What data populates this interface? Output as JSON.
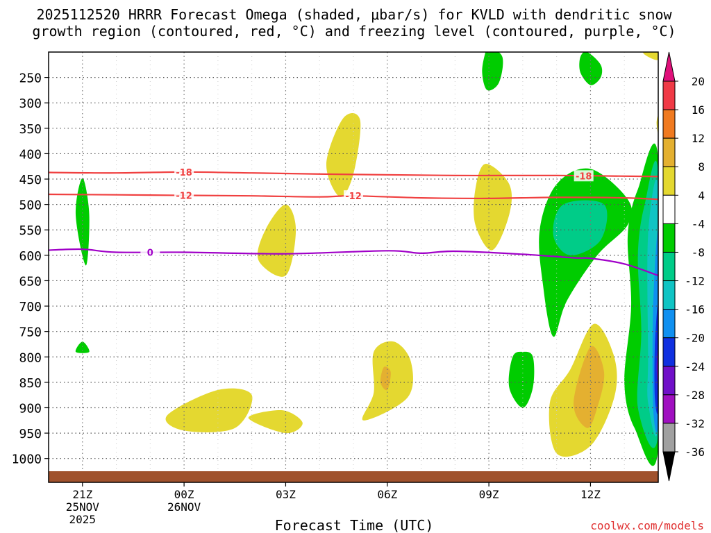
{
  "chart_data": {
    "type": "heatmap",
    "title_line1": "2025112520 HRRR Forecast Omega (shaded, μbar/s) for KVLD with dendritic snow",
    "title_line2": "growth region (contoured, red, °C) and freezing level (contoured, purple, °C)",
    "xlabel": "Forecast Time (UTC)",
    "credit": "coolwx.com/models",
    "x_ticks": [
      {
        "hour": 0,
        "label": "21Z",
        "sub1": "25NOV",
        "sub2": "2025"
      },
      {
        "hour": 3,
        "label": "00Z",
        "sub1": "26NOV",
        "sub2": ""
      },
      {
        "hour": 6,
        "label": "03Z",
        "sub1": "",
        "sub2": ""
      },
      {
        "hour": 9,
        "label": "06Z",
        "sub1": "",
        "sub2": ""
      },
      {
        "hour": 12,
        "label": "09Z",
        "sub1": "",
        "sub2": ""
      },
      {
        "hour": 15,
        "label": "12Z",
        "sub1": "",
        "sub2": ""
      }
    ],
    "x_range_hours": [
      -1,
      17
    ],
    "y_ticks": [
      250,
      300,
      350,
      400,
      450,
      500,
      550,
      600,
      650,
      700,
      750,
      800,
      850,
      900,
      950,
      1000
    ],
    "y_range_hPa": [
      200,
      1025
    ],
    "colorbar": {
      "labels": [
        "20",
        "16",
        "12",
        "8",
        "4",
        "-4",
        "-8",
        "-12",
        "-16",
        "-20",
        "-24",
        "-28",
        "-32",
        "-36"
      ],
      "colors": [
        "#f03a46",
        "#f07a20",
        "#e4b030",
        "#e4d830",
        "#ffffff",
        "#00cc00",
        "#00cc88",
        "#10c4c4",
        "#1090f0",
        "#1030e0",
        "#7010c8",
        "#a010c0",
        "#a0a0a0"
      ],
      "top_arrow_color": "#e0107a",
      "bottom_arrow_color": "#000000"
    },
    "contours": [
      {
        "name": "dgz-minus18",
        "label": "-18",
        "color": "#f04040",
        "label_hours": [
          3,
          14.8
        ],
        "points": [
          [
            -1,
            437
          ],
          [
            1,
            438
          ],
          [
            3,
            436
          ],
          [
            5,
            438
          ],
          [
            8,
            441
          ],
          [
            11,
            443
          ],
          [
            14,
            443
          ],
          [
            17,
            445
          ]
        ]
      },
      {
        "name": "dgz-minus12",
        "label": "-12",
        "color": "#f04040",
        "label_hours": [
          3,
          8
        ],
        "points": [
          [
            -1,
            480
          ],
          [
            1,
            481
          ],
          [
            3,
            482
          ],
          [
            5,
            483
          ],
          [
            7,
            485
          ],
          [
            8,
            483
          ],
          [
            10,
            487
          ],
          [
            12,
            488
          ],
          [
            14,
            486
          ],
          [
            16,
            487
          ],
          [
            17,
            490
          ]
        ]
      },
      {
        "name": "freezing-level-0",
        "label": "0",
        "color": "#a000c8",
        "label_hours": [
          2
        ],
        "points": [
          [
            -1,
            590
          ],
          [
            0,
            588
          ],
          [
            1,
            594
          ],
          [
            3,
            594
          ],
          [
            6,
            597
          ],
          [
            9,
            591
          ],
          [
            10,
            596
          ],
          [
            11,
            592
          ],
          [
            13,
            598
          ],
          [
            14.5,
            605
          ],
          [
            15,
            606
          ],
          [
            16,
            617
          ],
          [
            17,
            640
          ]
        ]
      }
    ],
    "omega_regions": [
      {
        "name": "green-21z-upper",
        "value": -6,
        "color": "#00cc00",
        "points": [
          [
            0,
            448
          ],
          [
            0.2,
            520
          ],
          [
            0.1,
            620
          ],
          [
            -0.2,
            520
          ]
        ]
      },
      {
        "name": "green-21z-lower",
        "value": -6,
        "color": "#00cc00",
        "points": [
          [
            0,
            770
          ],
          [
            0.2,
            790
          ],
          [
            -0.2,
            790
          ]
        ]
      },
      {
        "name": "yellow-00z-low",
        "value": 6,
        "color": "#e4d830",
        "points": [
          [
            2.5,
            915
          ],
          [
            4,
            865
          ],
          [
            5,
            875
          ],
          [
            4.5,
            940
          ],
          [
            3,
            945
          ]
        ]
      },
      {
        "name": "yellow-03z-mid",
        "value": 6,
        "color": "#e4d830",
        "points": [
          [
            6,
            500
          ],
          [
            6.3,
            550
          ],
          [
            6,
            640
          ],
          [
            5.2,
            610
          ],
          [
            5.4,
            550
          ]
        ]
      },
      {
        "name": "yellow-05z-low",
        "value": 6,
        "color": "#e4d830",
        "points": [
          [
            4.9,
            920
          ],
          [
            5.9,
            905
          ],
          [
            6.5,
            930
          ],
          [
            6.0,
            950
          ]
        ]
      },
      {
        "name": "yellow-07z-mid",
        "value": 6,
        "color": "#e4d830",
        "points": [
          [
            7.7,
            330
          ],
          [
            8.2,
            335
          ],
          [
            8.0,
            440
          ],
          [
            7.6,
            485
          ],
          [
            7.2,
            420
          ]
        ]
      },
      {
        "name": "yellow-08z-low",
        "value": 6,
        "color": "#e4d830",
        "points": [
          [
            8.6,
            790
          ],
          [
            9.2,
            770
          ],
          [
            9.7,
            810
          ],
          [
            9.6,
            880
          ],
          [
            8.3,
            925
          ],
          [
            8.6,
            870
          ]
        ]
      },
      {
        "name": "orange-08z-low",
        "value": 10,
        "color": "#e4b030",
        "points": [
          [
            8.9,
            820
          ],
          [
            9.1,
            830
          ],
          [
            9.0,
            865
          ],
          [
            8.8,
            850
          ]
        ]
      },
      {
        "name": "yellow-09z-mid",
        "value": 6,
        "color": "#e4d830",
        "points": [
          [
            11.9,
            420
          ],
          [
            12.6,
            460
          ],
          [
            12.6,
            520
          ],
          [
            12.1,
            590
          ],
          [
            11.6,
            540
          ],
          [
            11.6,
            470
          ]
        ]
      },
      {
        "name": "green-09z-upper",
        "value": -6,
        "color": "#00cc00",
        "points": [
          [
            12.0,
            190
          ],
          [
            12.4,
            210
          ],
          [
            12.3,
            260
          ],
          [
            11.95,
            275
          ],
          [
            11.8,
            240
          ],
          [
            11.9,
            200
          ]
        ]
      },
      {
        "name": "green-10z-low",
        "value": -6,
        "color": "#00cc00",
        "points": [
          [
            13.0,
            790
          ],
          [
            13.3,
            800
          ],
          [
            13.3,
            860
          ],
          [
            13.0,
            900
          ],
          [
            12.6,
            860
          ],
          [
            12.7,
            800
          ]
        ]
      },
      {
        "name": "green-12z-upper",
        "value": -6,
        "color": "#00cc00",
        "points": [
          [
            14.9,
            200
          ],
          [
            15.3,
            225
          ],
          [
            15.3,
            250
          ],
          [
            15.0,
            265
          ],
          [
            14.7,
            240
          ],
          [
            14.7,
            210
          ]
        ]
      },
      {
        "name": "green-11z-mid",
        "value": -6,
        "color": "#00cc00",
        "points": [
          [
            15.0,
            430
          ],
          [
            16.1,
            490
          ],
          [
            16.1,
            540
          ],
          [
            15.2,
            600
          ],
          [
            14.3,
            690
          ],
          [
            13.9,
            760
          ],
          [
            13.6,
            660
          ],
          [
            13.5,
            550
          ],
          [
            14.0,
            460
          ]
        ]
      },
      {
        "name": "teal-11z-mid",
        "value": -10,
        "color": "#00cc88",
        "points": [
          [
            14.2,
            500
          ],
          [
            15.4,
            500
          ],
          [
            15.3,
            570
          ],
          [
            14.4,
            600
          ],
          [
            13.9,
            560
          ]
        ]
      },
      {
        "name": "yellow-12z-low",
        "value": 6,
        "color": "#e4d830",
        "points": [
          [
            14.4,
            825
          ],
          [
            15.1,
            735
          ],
          [
            15.7,
            800
          ],
          [
            15.7,
            880
          ],
          [
            15.0,
            975
          ],
          [
            14.0,
            990
          ],
          [
            13.8,
            890
          ]
        ]
      },
      {
        "name": "orange-12z-low",
        "value": 10,
        "color": "#e4b030",
        "points": [
          [
            15.0,
            780
          ],
          [
            15.4,
            830
          ],
          [
            15.2,
            900
          ],
          [
            14.9,
            940
          ],
          [
            14.5,
            890
          ]
        ]
      },
      {
        "name": "green-14z-deep",
        "value": -6,
        "color": "#00cc00",
        "points": [
          [
            17,
            410
          ],
          [
            16.4,
            470
          ],
          [
            16.1,
            560
          ],
          [
            16.2,
            700
          ],
          [
            16.0,
            850
          ],
          [
            16.3,
            940
          ],
          [
            17,
            980
          ]
        ]
      },
      {
        "name": "teal-14z-deep",
        "value": -10,
        "color": "#00cc88",
        "points": [
          [
            17,
            440
          ],
          [
            16.6,
            500
          ],
          [
            16.4,
            600
          ],
          [
            16.5,
            750
          ],
          [
            16.4,
            900
          ],
          [
            17,
            950
          ]
        ]
      },
      {
        "name": "cyan-14z-deep",
        "value": -14,
        "color": "#10c4c4",
        "points": [
          [
            17,
            470
          ],
          [
            16.7,
            560
          ],
          [
            16.7,
            800
          ],
          [
            16.7,
            890
          ],
          [
            17,
            930
          ]
        ]
      },
      {
        "name": "blue-14z-deep",
        "value": -18,
        "color": "#1090f0",
        "points": [
          [
            17,
            560
          ],
          [
            16.85,
            700
          ],
          [
            16.85,
            900
          ],
          [
            17,
            920
          ]
        ]
      },
      {
        "name": "darkblue-14z-deep",
        "value": -22,
        "color": "#1030e0",
        "points": [
          [
            17,
            700
          ],
          [
            16.9,
            780
          ],
          [
            16.9,
            880
          ],
          [
            17,
            900
          ]
        ]
      },
      {
        "name": "purple-14z-deep",
        "value": -26,
        "color": "#7010c8",
        "points": [
          [
            17,
            780
          ],
          [
            16.95,
            820
          ],
          [
            17,
            860
          ]
        ]
      },
      {
        "name": "yellow-14z-upper",
        "value": 6,
        "color": "#e4d830",
        "points": [
          [
            16.6,
            195
          ],
          [
            17,
            185
          ],
          [
            17,
            215
          ],
          [
            16.6,
            205
          ]
        ]
      },
      {
        "name": "yellow-14z-mid",
        "value": 6,
        "color": "#e4d830",
        "points": [
          [
            17,
            325
          ],
          [
            16.95,
            340
          ],
          [
            17,
            360
          ]
        ]
      }
    ]
  }
}
